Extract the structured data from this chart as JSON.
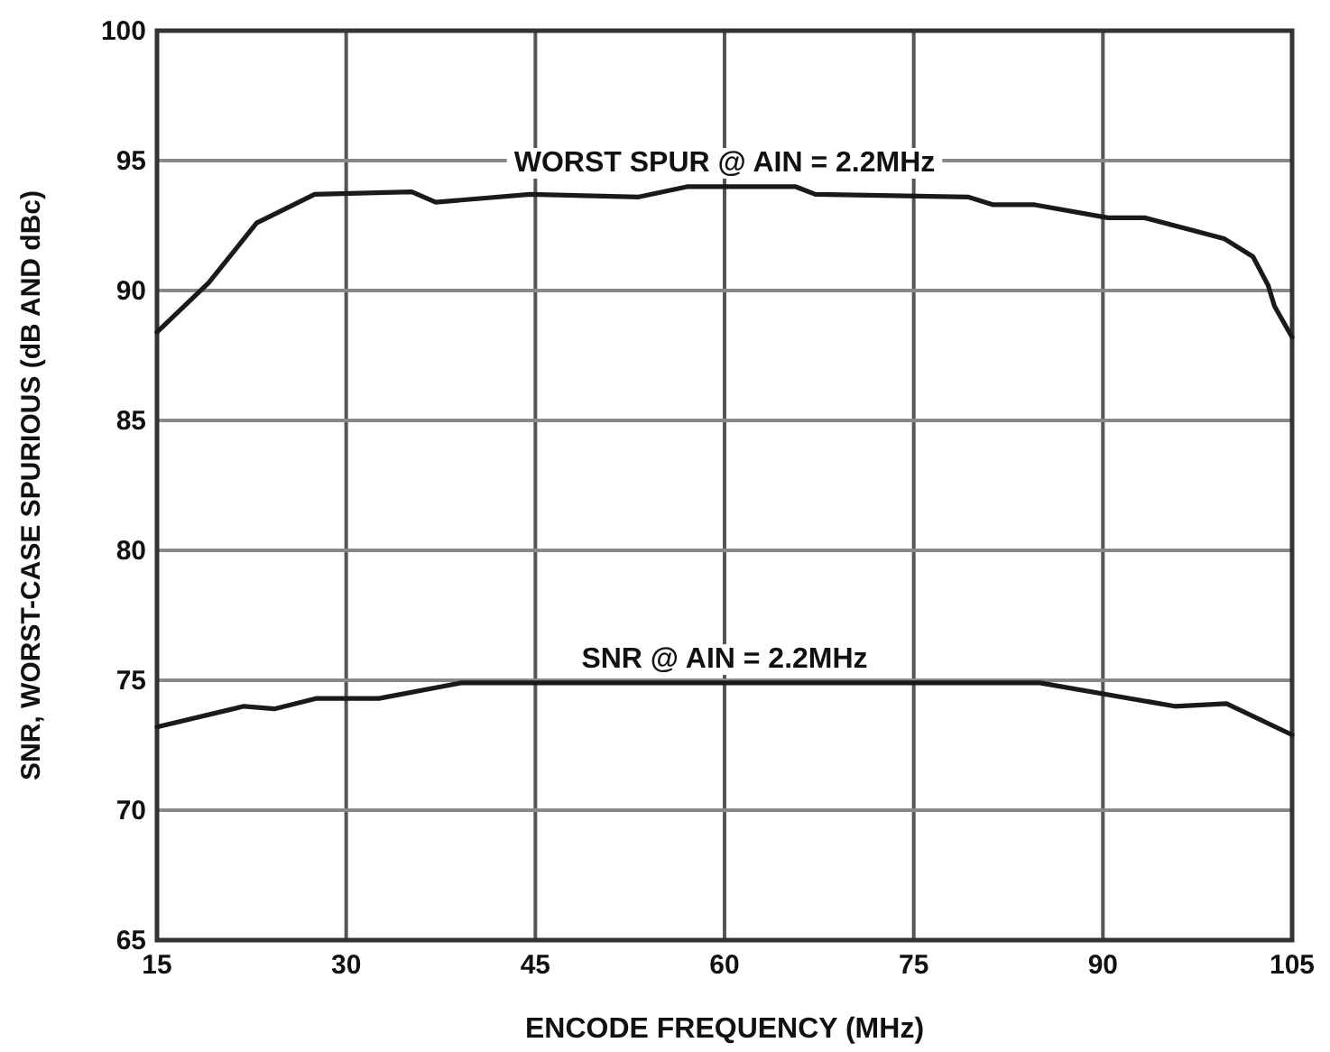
{
  "chart_data": {
    "type": "line",
    "xlabel": "ENCODE FREQUENCY (MHz)",
    "ylabel": "SNR, WORST-CASE SPURIOUS (dB AND dBc)",
    "xlim": [
      15,
      105
    ],
    "xticks": [
      15,
      30,
      45,
      60,
      75,
      90,
      105
    ],
    "ylim": [
      65,
      100
    ],
    "yticks": [
      65,
      70,
      75,
      80,
      85,
      90,
      95,
      100
    ],
    "grid": true,
    "line_style": "solid",
    "marker": "none",
    "series": [
      {
        "name": "WORST SPUR @ AIN = 2.2MHz",
        "color": "#1a1a1a",
        "x": [
          15,
          19.1,
          22.9,
          27.5,
          35.2,
          37.1,
          44.6,
          53.2,
          57.1,
          65.6,
          67.2,
          79.3,
          81.3,
          84.6,
          90.4,
          93.3,
          99.6,
          101.9,
          103.1,
          103.6,
          105
        ],
        "values": [
          88.4,
          90.3,
          92.6,
          93.7,
          93.8,
          93.4,
          93.7,
          93.6,
          94.0,
          94.0,
          93.7,
          93.6,
          93.3,
          93.3,
          92.8,
          92.8,
          92.0,
          91.3,
          90.2,
          89.4,
          88.2
        ]
      },
      {
        "name": "SNR @ AIN = 2.2MHz",
        "color": "#1a1a1a",
        "x": [
          15,
          21.9,
          24.3,
          27.6,
          32.6,
          39.1,
          85,
          95.7,
          99.8,
          105
        ],
        "values": [
          73.2,
          74.0,
          73.9,
          74.3,
          74.3,
          74.9,
          74.9,
          74.0,
          74.1,
          72.9
        ]
      }
    ]
  }
}
